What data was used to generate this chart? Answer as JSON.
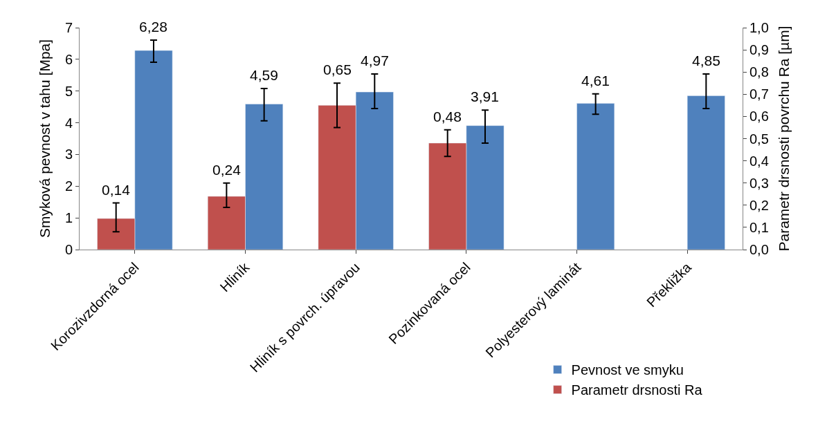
{
  "chart_data": {
    "type": "bar",
    "categories": [
      "Korozivzdorná ocel",
      "Hliník",
      "Hliník s povrch. úpravou",
      "Pozinkovaná ocel",
      "Polyesterový laminát",
      "Překližka"
    ],
    "ylabel": "Smyková pevnost v tahu [Mpa]",
    "y2label": "Parametr drsnosti povrchu Ra [µm]",
    "ylim": [
      0,
      7
    ],
    "yticks": [
      0,
      1,
      2,
      3,
      4,
      5,
      6,
      7
    ],
    "y2lim": [
      0,
      1
    ],
    "y2ticks": [
      {
        "value": 0,
        "label": "0,0"
      },
      {
        "value": 0.1,
        "label": "0,1"
      },
      {
        "value": 0.2,
        "label": "0,2"
      },
      {
        "value": 0.3,
        "label": "0,3"
      },
      {
        "value": 0.4,
        "label": "0,4"
      },
      {
        "value": 0.5,
        "label": "0,5"
      },
      {
        "value": 0.6,
        "label": "0,6"
      },
      {
        "value": 0.7,
        "label": "0,7"
      },
      {
        "value": 0.8,
        "label": "0,8"
      },
      {
        "value": 0.9,
        "label": "0,9"
      },
      {
        "value": 1,
        "label": "1,0"
      }
    ],
    "series": [
      {
        "name": "Parametr drsnosti Ra",
        "color": "#c0504d",
        "axis": "y2",
        "values": [
          0.14,
          0.24,
          0.65,
          0.48,
          null,
          null
        ],
        "value_labels": [
          "0,14",
          "0,24",
          "0,65",
          "0,48",
          null,
          null
        ],
        "errors": [
          [
            0.08,
            0.21
          ],
          [
            0.19,
            0.3
          ],
          [
            0.55,
            0.75
          ],
          [
            0.42,
            0.54
          ],
          null,
          null
        ]
      },
      {
        "name": "Pevnost ve smyku",
        "color": "#4f81bd",
        "values": [
          6.28,
          4.59,
          4.97,
          3.91,
          4.61,
          4.85
        ],
        "value_labels": [
          "6,28",
          "4,59",
          "4,97",
          "3,91",
          "4,61",
          "4,85"
        ],
        "errors": [
          [
            5.91,
            6.61
          ],
          [
            4.06,
            5.08
          ],
          [
            4.45,
            5.54
          ],
          [
            3.36,
            4.4
          ],
          [
            4.27,
            4.91
          ],
          [
            4.45,
            5.54
          ]
        ]
      }
    ],
    "legend": "bottom right"
  }
}
